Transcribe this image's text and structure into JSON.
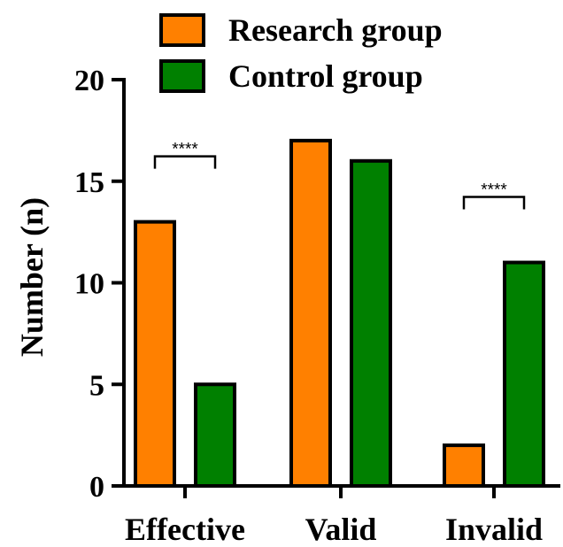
{
  "chart_data": {
    "type": "bar",
    "categories": [
      "Effective",
      "Valid",
      "Invalid"
    ],
    "series": [
      {
        "name": "Research group",
        "values": [
          13,
          17,
          2
        ],
        "color": "#FF8000"
      },
      {
        "name": "Control group",
        "values": [
          5,
          16,
          11
        ],
        "color": "#008000"
      }
    ],
    "ylabel": "Number (n)",
    "xlabel": "",
    "ylim": [
      0,
      20
    ],
    "yticks": [
      0,
      5,
      10,
      15,
      20
    ],
    "legend_position": "top",
    "grid": false,
    "annotations": [
      {
        "category": "Effective",
        "text": "****"
      },
      {
        "category": "Invalid",
        "text": "****"
      }
    ]
  }
}
